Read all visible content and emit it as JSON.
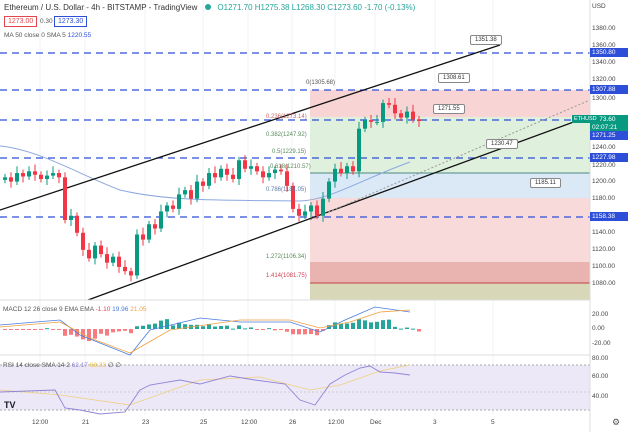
{
  "header": {
    "title": "Ethereum / U.S. Dollar - 4h - BITSTAMP - TradingView",
    "ohlc": "O1271.70 H1275.38 L1268.30 C1273.60 -1.70 (-0.13%)",
    "sell": "1273.00",
    "spread": "0.30",
    "buy": "1273.30",
    "ma": "MA 50 close 0 SMA 5",
    "ma_value": "1220.55"
  },
  "axis": {
    "currency": "USD",
    "ticks": [
      "1380.00",
      "1360.00",
      "1340.00",
      "1320.00",
      "1300.00",
      "1240.00",
      "1220.00",
      "1200.00",
      "1180.00",
      "1140.00",
      "1120.00",
      "1100.00",
      "1080.00"
    ],
    "tags": [
      "1350.80",
      "1307.88",
      "1271.25",
      "1227.98",
      "1158.38"
    ],
    "symbol": "ETHUSD",
    "last": "1273.60",
    "countdown": "02:07:21"
  },
  "fib_labels": [
    "0(1305.68)",
    "0.236(1273.14)",
    "0.382(1247.92)",
    "0.5(1229.15)",
    "0.618(1210.57)",
    "0.786(1181.05)",
    "1.272(1106.34)",
    "1.414(1081.75)"
  ],
  "callouts": [
    "1351.38",
    "1308.61",
    "1271.55",
    "1230.47",
    "1185.11"
  ],
  "candles_close": [
    1205,
    1200,
    1210,
    1206,
    1212,
    1208,
    1203,
    1207,
    1210,
    1205,
    1155,
    1160,
    1140,
    1120,
    1110,
    1125,
    1115,
    1105,
    1112,
    1100,
    1095,
    1090,
    1138,
    1132,
    1150,
    1145,
    1165,
    1172,
    1168,
    1185,
    1190,
    1180,
    1200,
    1195,
    1210,
    1205,
    1215,
    1208,
    1203,
    1225,
    1215,
    1218,
    1212,
    1205,
    1210,
    1214,
    1212,
    1195,
    1168,
    1160,
    1165,
    1172,
    1160,
    1180,
    1200,
    1215,
    1210,
    1218,
    1212,
    1262,
    1272,
    1270,
    1270,
    1292,
    1290,
    1280,
    1275,
    1282,
    1273,
    1271
  ],
  "macd": {
    "label": "MACD 12 26 close 9 EMA EMA",
    "hist": "-1.10",
    "macd": "19.96",
    "signal": "21.05",
    "ticks": [
      "20.00",
      "0.00",
      "-20.00"
    ]
  },
  "rsi": {
    "label": "RSI 14 close SMA 14 2",
    "value": "62.17",
    "sma": "68.23",
    "extra": "∅ ∅",
    "ticks": [
      "80.00",
      "60.00",
      "40.00"
    ]
  },
  "time_labels": [
    "12:00",
    "21",
    "23",
    "25",
    "12:00",
    "26",
    "12:00",
    "Dec",
    "3",
    "5"
  ]
}
